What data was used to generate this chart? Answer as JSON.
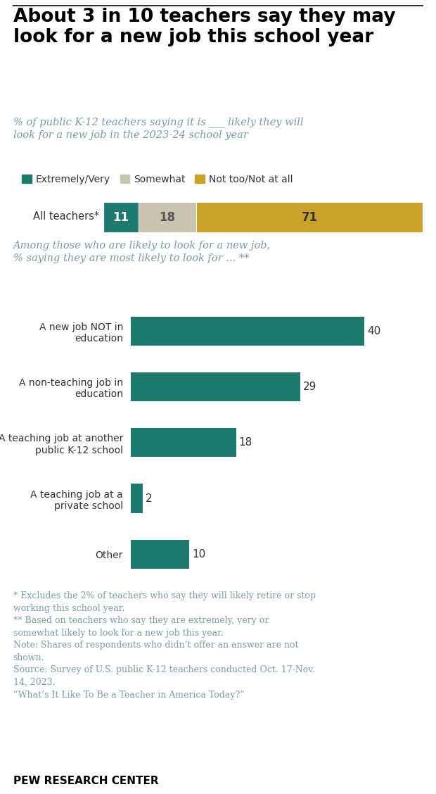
{
  "title": "About 3 in 10 teachers say they may\nlook for a new job this school year",
  "subtitle": "% of public K-12 teachers saying it is ___ likely they will\nlook for a new job in the 2023-24 school year",
  "legend_labels": [
    "Extremely/Very",
    "Somewhat",
    "Not too/Not at all"
  ],
  "legend_colors": [
    "#1d7a6e",
    "#c8c4b0",
    "#c9a227"
  ],
  "stacked_label": "All teachers*",
  "stacked_values": [
    11,
    18,
    71
  ],
  "stacked_colors": [
    "#1d7a6e",
    "#c8c4b0",
    "#c9a227"
  ],
  "stacked_text_colors": [
    "#ffffff",
    "#555555",
    "#333333"
  ],
  "section2_subtitle": "Among those who are likely to look for a new job,\n% saying they are most likely to look for ... **",
  "bar_labels": [
    "A new job NOT in\neducation",
    "A non-teaching job in\neducation",
    "A teaching job at another\npublic K-12 school",
    "A teaching job at a\nprivate school",
    "Other"
  ],
  "bar_values": [
    40,
    29,
    18,
    2,
    10
  ],
  "bar_color": "#1d7a6e",
  "footnote_lines": [
    "* Excludes the 2% of teachers who say they will likely retire or stop",
    "working this school year.",
    "** Based on teachers who say they are extremely, very or",
    "somewhat likely to look for a new job this year.",
    "Note: Shares of respondents who didn’t offer an answer are not",
    "shown.",
    "Source: Survey of U.S. public K-12 teachers conducted Oct. 17-Nov.",
    "14, 2023.",
    "“What’s It Like To Be a Teacher in America Today?”"
  ],
  "source_label": "PEW RESEARCH CENTER",
  "footnote_color": "#7a9aaa",
  "title_color": "#000000",
  "subtitle_color": "#7a9aaa",
  "background_color": "#ffffff"
}
